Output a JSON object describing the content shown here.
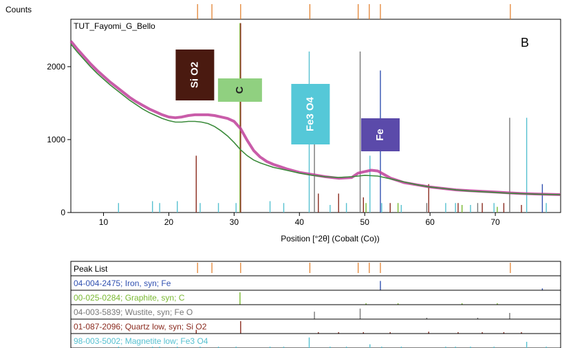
{
  "chart_data": {
    "type": "line",
    "title": "TUT_Fayomi_G_Bello",
    "panel_label": "B",
    "ylabel": "Counts",
    "xlabel": "Position [°2θ] (Cobalt (Co))",
    "xlim": [
      5,
      80
    ],
    "ylim": [
      0,
      2650
    ],
    "x_ticks": [
      10,
      20,
      30,
      40,
      50,
      60,
      70
    ],
    "y_ticks": [
      0,
      1000,
      2000
    ],
    "grid": false,
    "observed_pattern": {
      "x": [
        5,
        6,
        7,
        8,
        9,
        10,
        11,
        12,
        13,
        14,
        15,
        16,
        17,
        18,
        19,
        20,
        21,
        22,
        23,
        24,
        25,
        26,
        27,
        28,
        29,
        30,
        31,
        32,
        33,
        34,
        35,
        36,
        37,
        38,
        40,
        42,
        44,
        46,
        48,
        49,
        50,
        51,
        52,
        53,
        54,
        55,
        56,
        58,
        60,
        62,
        64,
        66,
        68,
        70,
        72,
        74,
        76,
        78,
        80
      ],
      "y": [
        2350,
        2240,
        2140,
        2040,
        1950,
        1870,
        1790,
        1720,
        1650,
        1580,
        1520,
        1470,
        1420,
        1380,
        1340,
        1310,
        1300,
        1310,
        1330,
        1340,
        1340,
        1340,
        1330,
        1310,
        1290,
        1250,
        1150,
        990,
        850,
        760,
        700,
        660,
        630,
        600,
        550,
        520,
        490,
        470,
        480,
        540,
        560,
        580,
        570,
        520,
        470,
        440,
        410,
        380,
        350,
        330,
        310,
        300,
        290,
        280,
        270,
        260,
        255,
        250,
        245
      ]
    },
    "fitted_background": {
      "x": [
        5,
        6,
        7,
        8,
        9,
        10,
        11,
        12,
        13,
        14,
        15,
        16,
        17,
        18,
        19,
        20,
        21,
        22,
        23,
        24,
        25,
        26,
        27,
        28,
        29,
        30,
        31,
        32,
        33,
        34,
        35,
        36,
        37,
        38,
        40,
        42,
        44,
        46,
        48,
        50,
        52,
        54,
        56,
        58,
        60,
        62,
        64,
        66,
        68,
        70,
        72,
        74,
        76,
        78,
        80
      ],
      "y": [
        2310,
        2200,
        2100,
        2000,
        1910,
        1830,
        1750,
        1680,
        1610,
        1540,
        1480,
        1420,
        1370,
        1330,
        1290,
        1260,
        1240,
        1240,
        1250,
        1250,
        1240,
        1220,
        1180,
        1120,
        1050,
        960,
        860,
        780,
        720,
        680,
        650,
        620,
        600,
        580,
        540,
        510,
        490,
        480,
        490,
        510,
        500,
        460,
        420,
        380,
        350,
        330,
        310,
        295,
        285,
        275,
        265,
        258,
        252,
        248,
        245
      ]
    },
    "annotations": [
      {
        "text": "Si O2",
        "x": 24.0,
        "fill": "#4a1a10",
        "text_color": "#ffffff"
      },
      {
        "text": "C",
        "x": 30.9,
        "fill": "#90d080",
        "text_color": "#222222"
      },
      {
        "text": "Fe3 O4",
        "x": 41.7,
        "fill": "#55c8d8",
        "text_color": "#ffffff"
      },
      {
        "text": "Fe",
        "x": 52.4,
        "fill": "#5b4aaa",
        "text_color": "#ffffff"
      }
    ],
    "phases": [
      {
        "name": "04-004-2475; Iron, syn; Fe",
        "color": "#3050b0",
        "peaks": [
          {
            "x": 52.4,
            "h": 0.75
          },
          {
            "x": 77.2,
            "h": 0.15
          }
        ]
      },
      {
        "name": "00-025-0284; Graphite, syn; C",
        "color": "#78b830",
        "peaks": [
          {
            "x": 30.9,
            "h": 1.0
          },
          {
            "x": 50.2,
            "h": 0.05
          },
          {
            "x": 55.1,
            "h": 0.05
          },
          {
            "x": 64.9,
            "h": 0.04
          },
          {
            "x": 70.3,
            "h": 0.03
          }
        ]
      },
      {
        "name": "04-003-5839; Wustite, syn; Fe O",
        "color": "#777777",
        "peaks": [
          {
            "x": 42.3,
            "h": 0.6
          },
          {
            "x": 49.3,
            "h": 0.85
          },
          {
            "x": 72.2,
            "h": 0.5
          },
          {
            "x": 59.5,
            "h": 0.05
          },
          {
            "x": 67.3,
            "h": 0.05
          }
        ]
      },
      {
        "name": "01-087-2096; Quartz low, syn; Si O2",
        "color": "#8a2a1e",
        "peaks": [
          {
            "x": 24.2,
            "h": 0.3
          },
          {
            "x": 31.0,
            "h": 1.0
          },
          {
            "x": 42.9,
            "h": 0.1
          },
          {
            "x": 46.0,
            "h": 0.1
          },
          {
            "x": 49.8,
            "h": 0.08
          },
          {
            "x": 53.9,
            "h": 0.05
          },
          {
            "x": 59.8,
            "h": 0.15
          },
          {
            "x": 64.3,
            "h": 0.05
          },
          {
            "x": 68.0,
            "h": 0.05
          },
          {
            "x": 71.3,
            "h": 0.05
          },
          {
            "x": 74.0,
            "h": 0.04
          }
        ]
      },
      {
        "name": "98-003-5002; Magnetite low; Fe3 O4",
        "color": "#55c0d0",
        "peaks": [
          {
            "x": 12.3,
            "h": 0.05
          },
          {
            "x": 17.5,
            "h": 0.06
          },
          {
            "x": 18.6,
            "h": 0.05
          },
          {
            "x": 21.3,
            "h": 0.06
          },
          {
            "x": 24.8,
            "h": 0.05
          },
          {
            "x": 27.6,
            "h": 0.05
          },
          {
            "x": 30.3,
            "h": 0.05
          },
          {
            "x": 35.5,
            "h": 0.06
          },
          {
            "x": 37.6,
            "h": 0.05
          },
          {
            "x": 41.5,
            "h": 0.85
          },
          {
            "x": 44.7,
            "h": 0.04
          },
          {
            "x": 47.2,
            "h": 0.05
          },
          {
            "x": 50.8,
            "h": 0.3
          },
          {
            "x": 52.6,
            "h": 0.05
          },
          {
            "x": 55.6,
            "h": 0.04
          },
          {
            "x": 62.4,
            "h": 0.05
          },
          {
            "x": 63.9,
            "h": 0.05
          },
          {
            "x": 66.2,
            "h": 0.04
          },
          {
            "x": 69.8,
            "h": 0.05
          },
          {
            "x": 74.8,
            "h": 0.5
          },
          {
            "x": 77.8,
            "h": 0.05
          }
        ]
      }
    ],
    "peak_list": {
      "label": "Peak List",
      "peaks": [
        24.4,
        26.6,
        31.0,
        41.6,
        49.0,
        50.7,
        52.4,
        72.3
      ]
    },
    "reference_label_top": "Peak List"
  },
  "colors": {
    "observed": "#c0409a",
    "fitted": "#3a8a3a",
    "peak_list": "#e07820",
    "axis": "#000000"
  }
}
